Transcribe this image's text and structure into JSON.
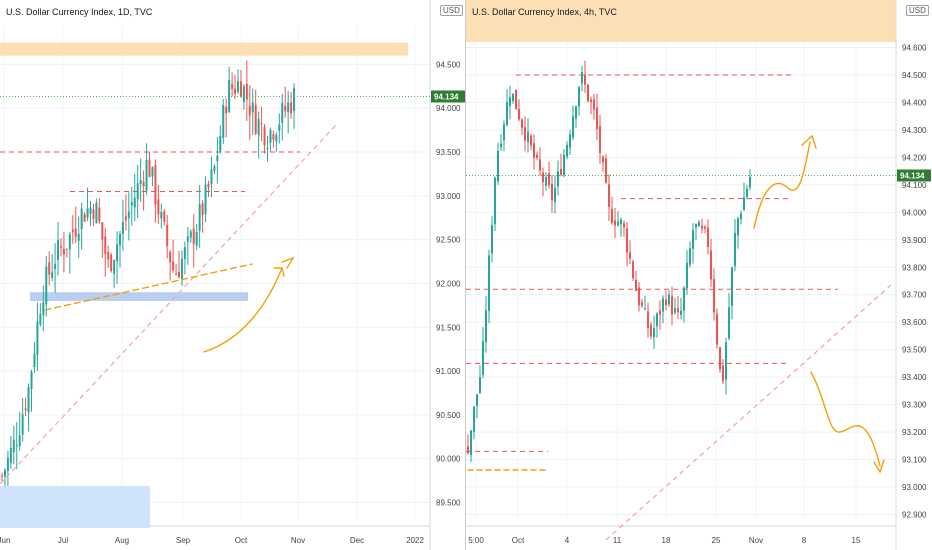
{
  "charts": [
    {
      "id": "left",
      "title": "U.S. Dollar Currency Index, 1D, TVC",
      "currency_label": "USD",
      "current_price_label": "94.134",
      "y_ticks": [
        "94.500",
        "94.000",
        "93.500",
        "93.000",
        "92.500",
        "92.000",
        "91.500",
        "91.000",
        "90.500",
        "90.000",
        "89.500"
      ],
      "x_ticks": [
        "Jun",
        "Jul",
        "Aug",
        "Sep",
        "Oct",
        "Nov",
        "Dec",
        "2022"
      ],
      "colors": {
        "up": "#26a69a",
        "down": "#ef5350",
        "resistance_zone": "#fbd9a8",
        "support_zone": "#aec6ef",
        "support_zone_light": "#cfe3fb",
        "price_line": "#4caf50",
        "dashed_red": "#ef5350",
        "trend_pink": "#f4a0a8",
        "arrow_orange": "#f59e0b"
      }
    },
    {
      "id": "right",
      "title": "U.S. Dollar Currency Index, 4h, TVC",
      "currency_label": "USD",
      "current_price_label": "94.134",
      "y_ticks": [
        "94.600",
        "94.500",
        "94.400",
        "94.300",
        "94.200",
        "94.100",
        "94.000",
        "93.900",
        "93.800",
        "93.700",
        "93.600",
        "93.500",
        "93.400",
        "93.300",
        "93.200",
        "93.100",
        "93.000",
        "92.900"
      ],
      "x_ticks": [
        "5:00",
        "Oct",
        "4",
        "11",
        "18",
        "25",
        "Nov",
        "8",
        "15"
      ],
      "colors": {
        "up": "#26a69a",
        "down": "#ef5350",
        "resistance_zone": "#fbd9a8",
        "price_line": "#4caf50",
        "dashed_red": "#ef5350",
        "trend_pink": "#f4a0a8",
        "arrow_orange": "#f59e0b"
      }
    }
  ],
  "chart_data": [
    {
      "type": "candlestick",
      "title": "U.S. Dollar Currency Index, 1D, TVC",
      "ylim": [
        89.3,
        94.95
      ],
      "last_price": 94.134,
      "x": [
        "2021-06-01",
        "2021-06-08",
        "2021-06-15",
        "2021-06-22",
        "2021-06-29",
        "2021-07-06",
        "2021-07-13",
        "2021-07-20",
        "2021-07-27",
        "2021-08-03",
        "2021-08-10",
        "2021-08-17",
        "2021-08-24",
        "2021-08-31",
        "2021-09-07",
        "2021-09-14",
        "2021-09-21",
        "2021-09-28",
        "2021-10-05",
        "2021-10-12",
        "2021-10-19",
        "2021-10-26",
        "2021-11-01"
      ],
      "close_path": [
        89.8,
        90.2,
        90.8,
        91.9,
        92.3,
        92.5,
        92.8,
        92.9,
        92.2,
        92.6,
        93.0,
        93.4,
        92.7,
        92.1,
        92.4,
        92.8,
        93.3,
        94.2,
        94.3,
        93.9,
        93.7,
        93.9,
        94.13
      ],
      "zones": [
        {
          "label": "resistance",
          "from": 94.75,
          "to": 94.6
        },
        {
          "label": "support",
          "from": 91.9,
          "to": 91.8
        }
      ],
      "levels": [
        93.5,
        93.05
      ]
    },
    {
      "type": "candlestick",
      "title": "U.S. Dollar Currency Index, 4h, TVC",
      "ylim": [
        92.88,
        94.62
      ],
      "last_price": 94.134,
      "close_path": [
        93.15,
        93.45,
        94.2,
        94.45,
        94.3,
        94.15,
        94.05,
        94.25,
        94.5,
        94.35,
        94.0,
        93.95,
        93.7,
        93.55,
        93.7,
        93.6,
        93.95,
        93.9,
        93.35,
        93.95,
        94.13
      ],
      "zones": [
        {
          "label": "resistance",
          "from": 94.65,
          "to": 94.6
        }
      ],
      "levels": [
        94.5,
        94.05,
        93.72,
        93.45,
        93.13
      ]
    }
  ]
}
